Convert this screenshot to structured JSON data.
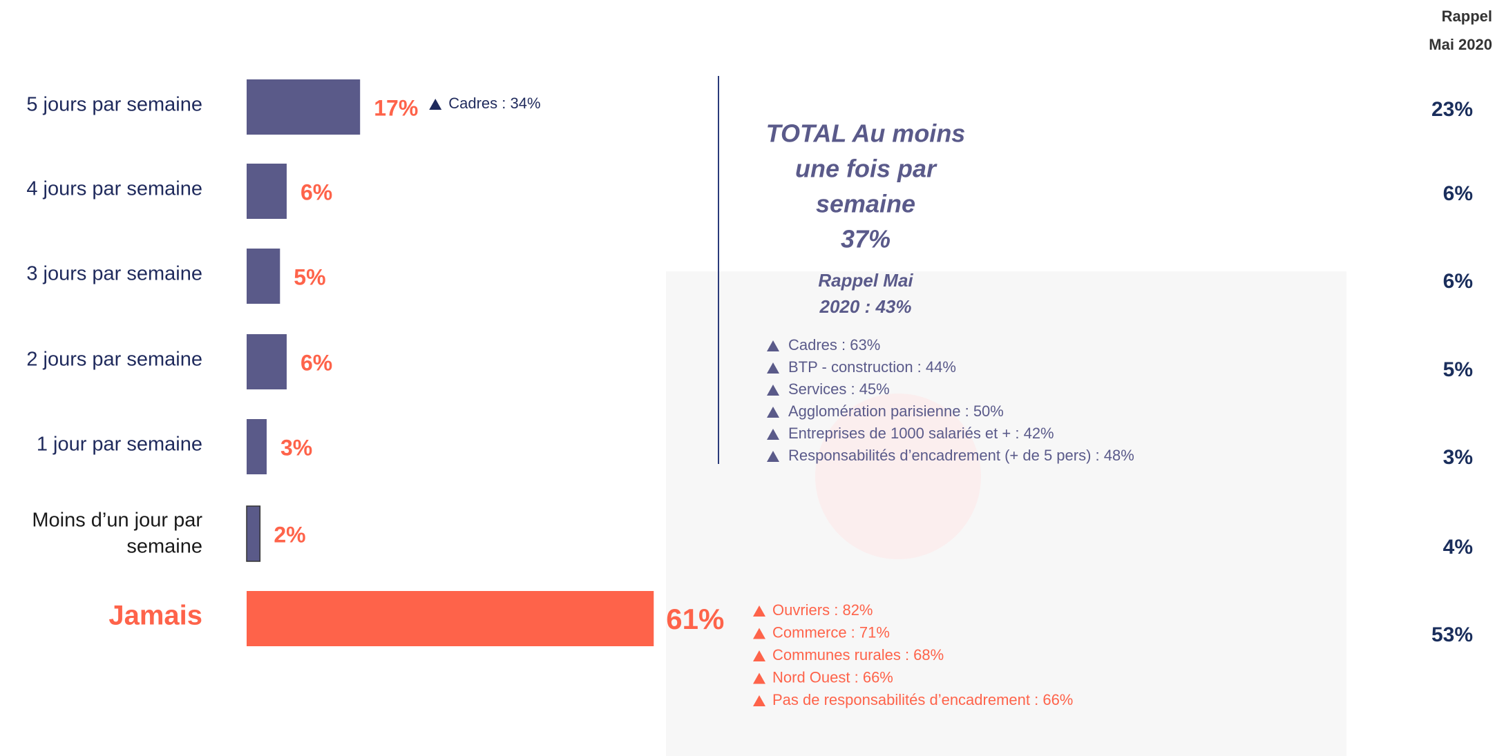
{
  "chart_data": {
    "type": "bar",
    "orientation": "horizontal",
    "categories": [
      "5 jours par semaine",
      "4 jours par semaine",
      "3 jours par semaine",
      "2 jours par semaine",
      "1 jour par semaine",
      [
        "Moins d’un jour par",
        "semaine"
      ],
      "Jamais"
    ],
    "values": [
      17,
      6,
      5,
      6,
      3,
      2,
      61
    ],
    "value_labels": [
      "17%",
      "6%",
      "5%",
      "6%",
      "3%",
      "2%",
      "61%"
    ],
    "colors": [
      "#5a5a89",
      "#5a5a89",
      "#5a5a89",
      "#5a5a89",
      "#5a5a89",
      "#5a5a89",
      "#fe634a"
    ],
    "bar_notes": [
      [
        "Cadres : 34%"
      ],
      [],
      [],
      [],
      [],
      [],
      [
        "Ouvriers : 82%",
        "Commerce : 71%",
        "Communes rurales : 68%",
        "Nord Ouest : 66%",
        "Pas de responsabilités d’encadrement : 66%"
      ]
    ],
    "recall": {
      "header": [
        "Rappel",
        "Mai 2020"
      ],
      "labels": [
        "23%",
        "6%",
        "6%",
        "5%",
        "3%",
        "4%",
        "53%"
      ]
    },
    "total": {
      "title_lines": [
        "TOTAL Au moins",
        "une fois par",
        "semaine",
        "37%"
      ],
      "recall_lines": [
        "Rappel Mai",
        "2020 : 43%"
      ],
      "notes": [
        "Cadres : 63%",
        "BTP - construction : 44%",
        "Services : 45%",
        "Agglomération parisienne : 50%",
        "Entreprises de 1000 salariés et + : 42%",
        "Responsabilités d’encadrement (+ de 5 pers) : 48%"
      ]
    }
  }
}
